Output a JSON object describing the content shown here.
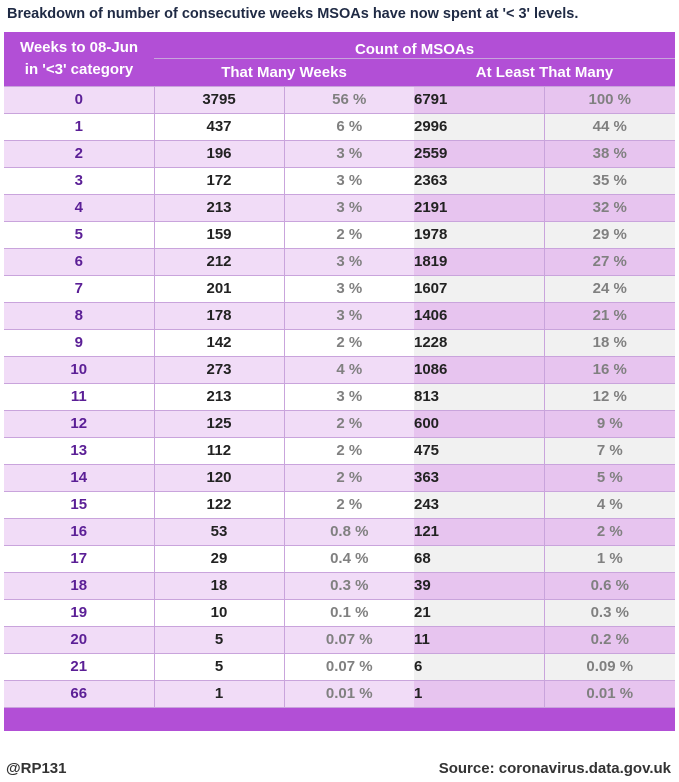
{
  "title": "Breakdown of number of consecutive weeks MSOAs have now spent at '< 3' levels.",
  "header": {
    "weeks_line1": "Weeks to 08-Jun",
    "weeks_line2": "in '<3' category",
    "count_group": "Count of MSOAs",
    "that_many": "That Many Weeks",
    "at_least": "At Least That Many"
  },
  "chart_data": {
    "type": "table",
    "title": "Breakdown of number of consecutive weeks MSOAs have now spent at '< 3' levels.",
    "columns": [
      "Weeks to 08-Jun in '<3' category",
      "That Many Weeks",
      "That Many Weeks %",
      "At Least That Many",
      "At Least That Many %"
    ],
    "rows": [
      {
        "weeks": "0",
        "count": "3795",
        "pct": "56 %",
        "atleast": "6791",
        "atleast_pct": "100 %"
      },
      {
        "weeks": "1",
        "count": "437",
        "pct": "6 %",
        "atleast": "2996",
        "atleast_pct": "44 %"
      },
      {
        "weeks": "2",
        "count": "196",
        "pct": "3 %",
        "atleast": "2559",
        "atleast_pct": "38 %"
      },
      {
        "weeks": "3",
        "count": "172",
        "pct": "3 %",
        "atleast": "2363",
        "atleast_pct": "35 %"
      },
      {
        "weeks": "4",
        "count": "213",
        "pct": "3 %",
        "atleast": "2191",
        "atleast_pct": "32 %"
      },
      {
        "weeks": "5",
        "count": "159",
        "pct": "2 %",
        "atleast": "1978",
        "atleast_pct": "29 %"
      },
      {
        "weeks": "6",
        "count": "212",
        "pct": "3 %",
        "atleast": "1819",
        "atleast_pct": "27 %"
      },
      {
        "weeks": "7",
        "count": "201",
        "pct": "3 %",
        "atleast": "1607",
        "atleast_pct": "24 %"
      },
      {
        "weeks": "8",
        "count": "178",
        "pct": "3 %",
        "atleast": "1406",
        "atleast_pct": "21 %"
      },
      {
        "weeks": "9",
        "count": "142",
        "pct": "2 %",
        "atleast": "1228",
        "atleast_pct": "18 %"
      },
      {
        "weeks": "10",
        "count": "273",
        "pct": "4 %",
        "atleast": "1086",
        "atleast_pct": "16 %"
      },
      {
        "weeks": "11",
        "count": "213",
        "pct": "3 %",
        "atleast": "813",
        "atleast_pct": "12 %"
      },
      {
        "weeks": "12",
        "count": "125",
        "pct": "2 %",
        "atleast": "600",
        "atleast_pct": "9 %"
      },
      {
        "weeks": "13",
        "count": "112",
        "pct": "2 %",
        "atleast": "475",
        "atleast_pct": "7 %"
      },
      {
        "weeks": "14",
        "count": "120",
        "pct": "2 %",
        "atleast": "363",
        "atleast_pct": "5 %"
      },
      {
        "weeks": "15",
        "count": "122",
        "pct": "2 %",
        "atleast": "243",
        "atleast_pct": "4 %"
      },
      {
        "weeks": "16",
        "count": "53",
        "pct": "0.8 %",
        "atleast": "121",
        "atleast_pct": "2 %"
      },
      {
        "weeks": "17",
        "count": "29",
        "pct": "0.4 %",
        "atleast": "68",
        "atleast_pct": "1 %"
      },
      {
        "weeks": "18",
        "count": "18",
        "pct": "0.3 %",
        "atleast": "39",
        "atleast_pct": "0.6 %"
      },
      {
        "weeks": "19",
        "count": "10",
        "pct": "0.1 %",
        "atleast": "21",
        "atleast_pct": "0.3 %"
      },
      {
        "weeks": "20",
        "count": "5",
        "pct": "0.07 %",
        "atleast": "11",
        "atleast_pct": "0.2 %"
      },
      {
        "weeks": "21",
        "count": "5",
        "pct": "0.07 %",
        "atleast": "6",
        "atleast_pct": "0.09 %"
      },
      {
        "weeks": "66",
        "count": "1",
        "pct": "0.01 %",
        "atleast": "1",
        "atleast_pct": "0.01 %"
      }
    ]
  },
  "footer": {
    "author": "@RP131",
    "source": "Source: coronavirus.data.gov.uk"
  },
  "colors": {
    "header_purple": "#b24fd6",
    "row_light": "#f1dcf7",
    "row_mid": "#e7c4ef",
    "week_text": "#5b1f96",
    "pct_text": "#808080"
  }
}
